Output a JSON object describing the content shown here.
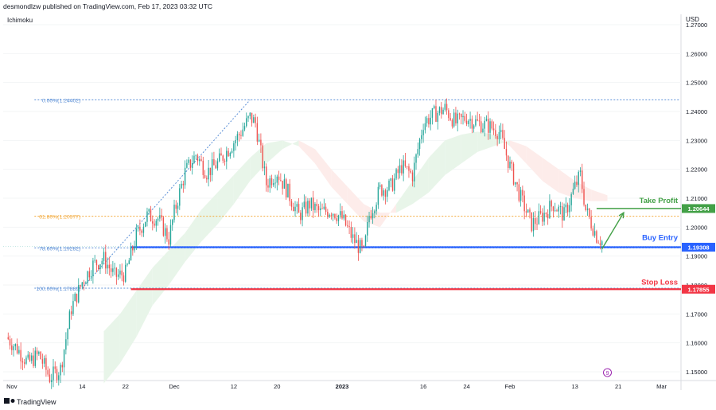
{
  "header": {
    "publisher": "desmondlzw published on TradingView.com, Feb 17, 2023 03:32 UTC"
  },
  "indicator_label": "Ichimoku",
  "currency": "USD",
  "branding": {
    "logo_text": "TradingView"
  },
  "event_marker": {
    "label": "9"
  },
  "colors": {
    "up": "#26a69a",
    "down": "#ef5350",
    "cloud_bull": "#e8f5e9",
    "cloud_bear": "#fdecea",
    "fib": "#5b8fd6",
    "fib_618": "#f2a93b",
    "entry": "#2962ff",
    "stop": "#f23645",
    "tp": "#43a047"
  },
  "chart_data": {
    "type": "candlestick",
    "title": "",
    "currency": "USD",
    "ylim": [
      1.145,
      1.271
    ],
    "y_ticks": [
      "1.27000",
      "1.26000",
      "1.25000",
      "1.24000",
      "1.23000",
      "1.22000",
      "1.21000",
      "1.20000",
      "1.19000",
      "1.18000",
      "1.17000",
      "1.16000",
      "1.15000"
    ],
    "x_ticks": [
      {
        "label": "Nov",
        "day": 0
      },
      {
        "label": "14",
        "day": 13
      },
      {
        "label": "22",
        "day": 21
      },
      {
        "label": "Dec",
        "day": 30
      },
      {
        "label": "12",
        "day": 41
      },
      {
        "label": "20",
        "day": 49
      },
      {
        "label": "2023",
        "day": 61
      },
      {
        "label": "16",
        "day": 76
      },
      {
        "label": "24",
        "day": 84
      },
      {
        "label": "Feb",
        "day": 92
      },
      {
        "label": "13",
        "day": 104
      },
      {
        "label": "21",
        "day": 112
      },
      {
        "label": "Mar",
        "day": 120
      }
    ],
    "x_range_days": [
      -1,
      123
    ],
    "close_path": [
      [
        -1,
        1.162
      ],
      [
        1,
        1.158
      ],
      [
        3,
        1.153
      ],
      [
        5,
        1.156
      ],
      [
        7,
        1.148
      ],
      [
        9,
        1.151
      ],
      [
        11,
        1.172
      ],
      [
        13,
        1.181
      ],
      [
        15,
        1.187
      ],
      [
        17,
        1.189
      ],
      [
        19,
        1.183
      ],
      [
        21,
        1.184
      ],
      [
        23,
        1.197
      ],
      [
        25,
        1.204
      ],
      [
        27,
        1.203
      ],
      [
        29,
        1.196
      ],
      [
        30,
        1.205
      ],
      [
        32,
        1.219
      ],
      [
        34,
        1.225
      ],
      [
        36,
        1.219
      ],
      [
        38,
        1.222
      ],
      [
        40,
        1.227
      ],
      [
        42,
        1.232
      ],
      [
        44,
        1.238
      ],
      [
        45,
        1.236
      ],
      [
        47,
        1.215
      ],
      [
        49,
        1.219
      ],
      [
        51,
        1.212
      ],
      [
        53,
        1.204
      ],
      [
        55,
        1.208
      ],
      [
        57,
        1.205
      ],
      [
        59,
        1.206
      ],
      [
        61,
        1.203
      ],
      [
        63,
        1.196
      ],
      [
        65,
        1.191
      ],
      [
        66,
        1.204
      ],
      [
        68,
        1.213
      ],
      [
        70,
        1.214
      ],
      [
        72,
        1.221
      ],
      [
        74,
        1.218
      ],
      [
        76,
        1.236
      ],
      [
        78,
        1.239
      ],
      [
        80,
        1.241
      ],
      [
        82,
        1.236
      ],
      [
        84,
        1.238
      ],
      [
        86,
        1.236
      ],
      [
        88,
        1.235
      ],
      [
        90,
        1.233
      ],
      [
        92,
        1.221
      ],
      [
        94,
        1.21
      ],
      [
        96,
        1.201
      ],
      [
        98,
        1.204
      ],
      [
        100,
        1.208
      ],
      [
        102,
        1.204
      ],
      [
        104,
        1.214
      ],
      [
        105,
        1.218
      ],
      [
        106,
        1.206
      ],
      [
        108,
        1.197
      ],
      [
        109,
        1.195
      ]
    ],
    "ichimoku_cloud": [
      {
        "day": 17,
        "a": 1.164,
        "b": 1.146
      },
      {
        "day": 20,
        "a": 1.17,
        "b": 1.153
      },
      {
        "day": 23,
        "a": 1.178,
        "b": 1.162
      },
      {
        "day": 26,
        "a": 1.186,
        "b": 1.173
      },
      {
        "day": 29,
        "a": 1.192,
        "b": 1.18
      },
      {
        "day": 32,
        "a": 1.198,
        "b": 1.188
      },
      {
        "day": 35,
        "a": 1.206,
        "b": 1.195
      },
      {
        "day": 38,
        "a": 1.212,
        "b": 1.201
      },
      {
        "day": 41,
        "a": 1.218,
        "b": 1.208
      },
      {
        "day": 44,
        "a": 1.224,
        "b": 1.216
      },
      {
        "day": 47,
        "a": 1.229,
        "b": 1.222
      },
      {
        "day": 50,
        "a": 1.23,
        "b": 1.227
      },
      {
        "day": 53,
        "a": 1.228,
        "b": 1.23
      },
      {
        "day": 56,
        "a": 1.222,
        "b": 1.227
      },
      {
        "day": 59,
        "a": 1.214,
        "b": 1.22
      },
      {
        "day": 62,
        "a": 1.208,
        "b": 1.214
      },
      {
        "day": 65,
        "a": 1.202,
        "b": 1.208
      },
      {
        "day": 68,
        "a": 1.2,
        "b": 1.205
      },
      {
        "day": 71,
        "a": 1.208,
        "b": 1.205
      },
      {
        "day": 74,
        "a": 1.216,
        "b": 1.208
      },
      {
        "day": 77,
        "a": 1.224,
        "b": 1.212
      },
      {
        "day": 80,
        "a": 1.23,
        "b": 1.218
      },
      {
        "day": 83,
        "a": 1.232,
        "b": 1.222
      },
      {
        "day": 86,
        "a": 1.233,
        "b": 1.226
      },
      {
        "day": 89,
        "a": 1.232,
        "b": 1.228
      },
      {
        "day": 92,
        "a": 1.228,
        "b": 1.23
      },
      {
        "day": 95,
        "a": 1.222,
        "b": 1.228
      },
      {
        "day": 98,
        "a": 1.216,
        "b": 1.224
      },
      {
        "day": 101,
        "a": 1.212,
        "b": 1.22
      },
      {
        "day": 104,
        "a": 1.21,
        "b": 1.216
      },
      {
        "day": 107,
        "a": 1.209,
        "b": 1.213
      },
      {
        "day": 110,
        "a": 1.209,
        "b": 1.211
      }
    ],
    "fibonacci": [
      {
        "label": "0.00%(1.24402)",
        "value": 1.24402,
        "color": "#5b8fd6"
      },
      {
        "label": "61.80%(1.20377)",
        "value": 1.20377,
        "color": "#f2a93b"
      },
      {
        "label": "78.60%(1.19282)",
        "value": 1.19282,
        "color": "#5b8fd6"
      },
      {
        "label": "100.00%(1.17889)",
        "value": 1.17889,
        "color": "#5b8fd6"
      }
    ],
    "fib_start_day": 13,
    "levels": [
      {
        "name": "Take Profit",
        "value": 1.20644,
        "price_label": "1.20644",
        "color": "#43a047",
        "from_day": 108
      },
      {
        "name": "Buy Entry",
        "value": 1.19308,
        "price_label": "1.19308",
        "color": "#2962ff",
        "from_day": 22
      },
      {
        "name": "Stop Loss",
        "value": 1.17855,
        "price_label": "1.17855",
        "color": "#f23645",
        "from_day": 22
      }
    ],
    "current_price": 1.195,
    "trend_line": {
      "from": [
        13,
        1.1789
      ],
      "to": [
        44,
        1.244
      ]
    },
    "arrow": {
      "from": [
        109,
        1.1925
      ],
      "to": [
        113,
        1.205
      ]
    },
    "event_day": 110
  }
}
